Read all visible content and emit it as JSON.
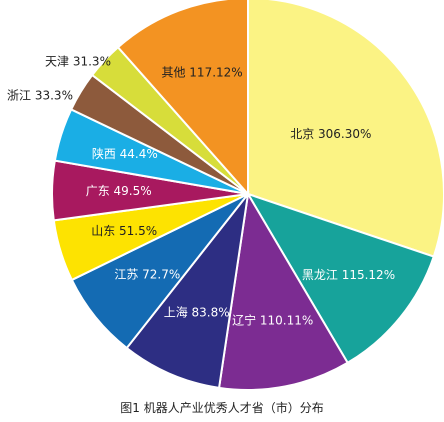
{
  "chart_data": {
    "type": "pie",
    "caption": "图1  机器人产业优秀人才省（市）分布",
    "slices": [
      {
        "label": "北京",
        "value_text": "306.30%",
        "value": 306.3,
        "color": "#fbf384",
        "text_color": "#222222"
      },
      {
        "label": "黑龙江",
        "value_text": "115.12%",
        "value": 115.12,
        "color": "#17a39b",
        "text_color": "#ffffff"
      },
      {
        "label": "辽宁",
        "value_text": "110.11%",
        "value": 110.11,
        "color": "#7c2c92",
        "text_color": "#ffffff"
      },
      {
        "label": "上海",
        "value_text": "83.8%",
        "value": 83.8,
        "color": "#2d2e83",
        "text_color": "#ffffff"
      },
      {
        "label": "江苏",
        "value_text": "72.7%",
        "value": 72.7,
        "color": "#146bb3",
        "text_color": "#ffffff"
      },
      {
        "label": "山东",
        "value_text": "51.5%",
        "value": 51.5,
        "color": "#fde301",
        "text_color": "#222222"
      },
      {
        "label": "广东",
        "value_text": "49.5%",
        "value": 49.5,
        "color": "#a8195f",
        "text_color": "#ffffff"
      },
      {
        "label": "陕西",
        "value_text": "44.4%",
        "value": 44.4,
        "color": "#1aaee5",
        "text_color": "#ffffff"
      },
      {
        "label": "浙江",
        "value_text": "33.3%",
        "value": 33.3,
        "color": "#8d5a3c",
        "text_color": "#222222"
      },
      {
        "label": "天津",
        "value_text": "31.3%",
        "value": 31.3,
        "color": "#d7dd3a",
        "text_color": "#222222"
      },
      {
        "label": "其他",
        "value_text": "117.12%",
        "value": 117.12,
        "color": "#f39322",
        "text_color": "#222222"
      }
    ]
  }
}
